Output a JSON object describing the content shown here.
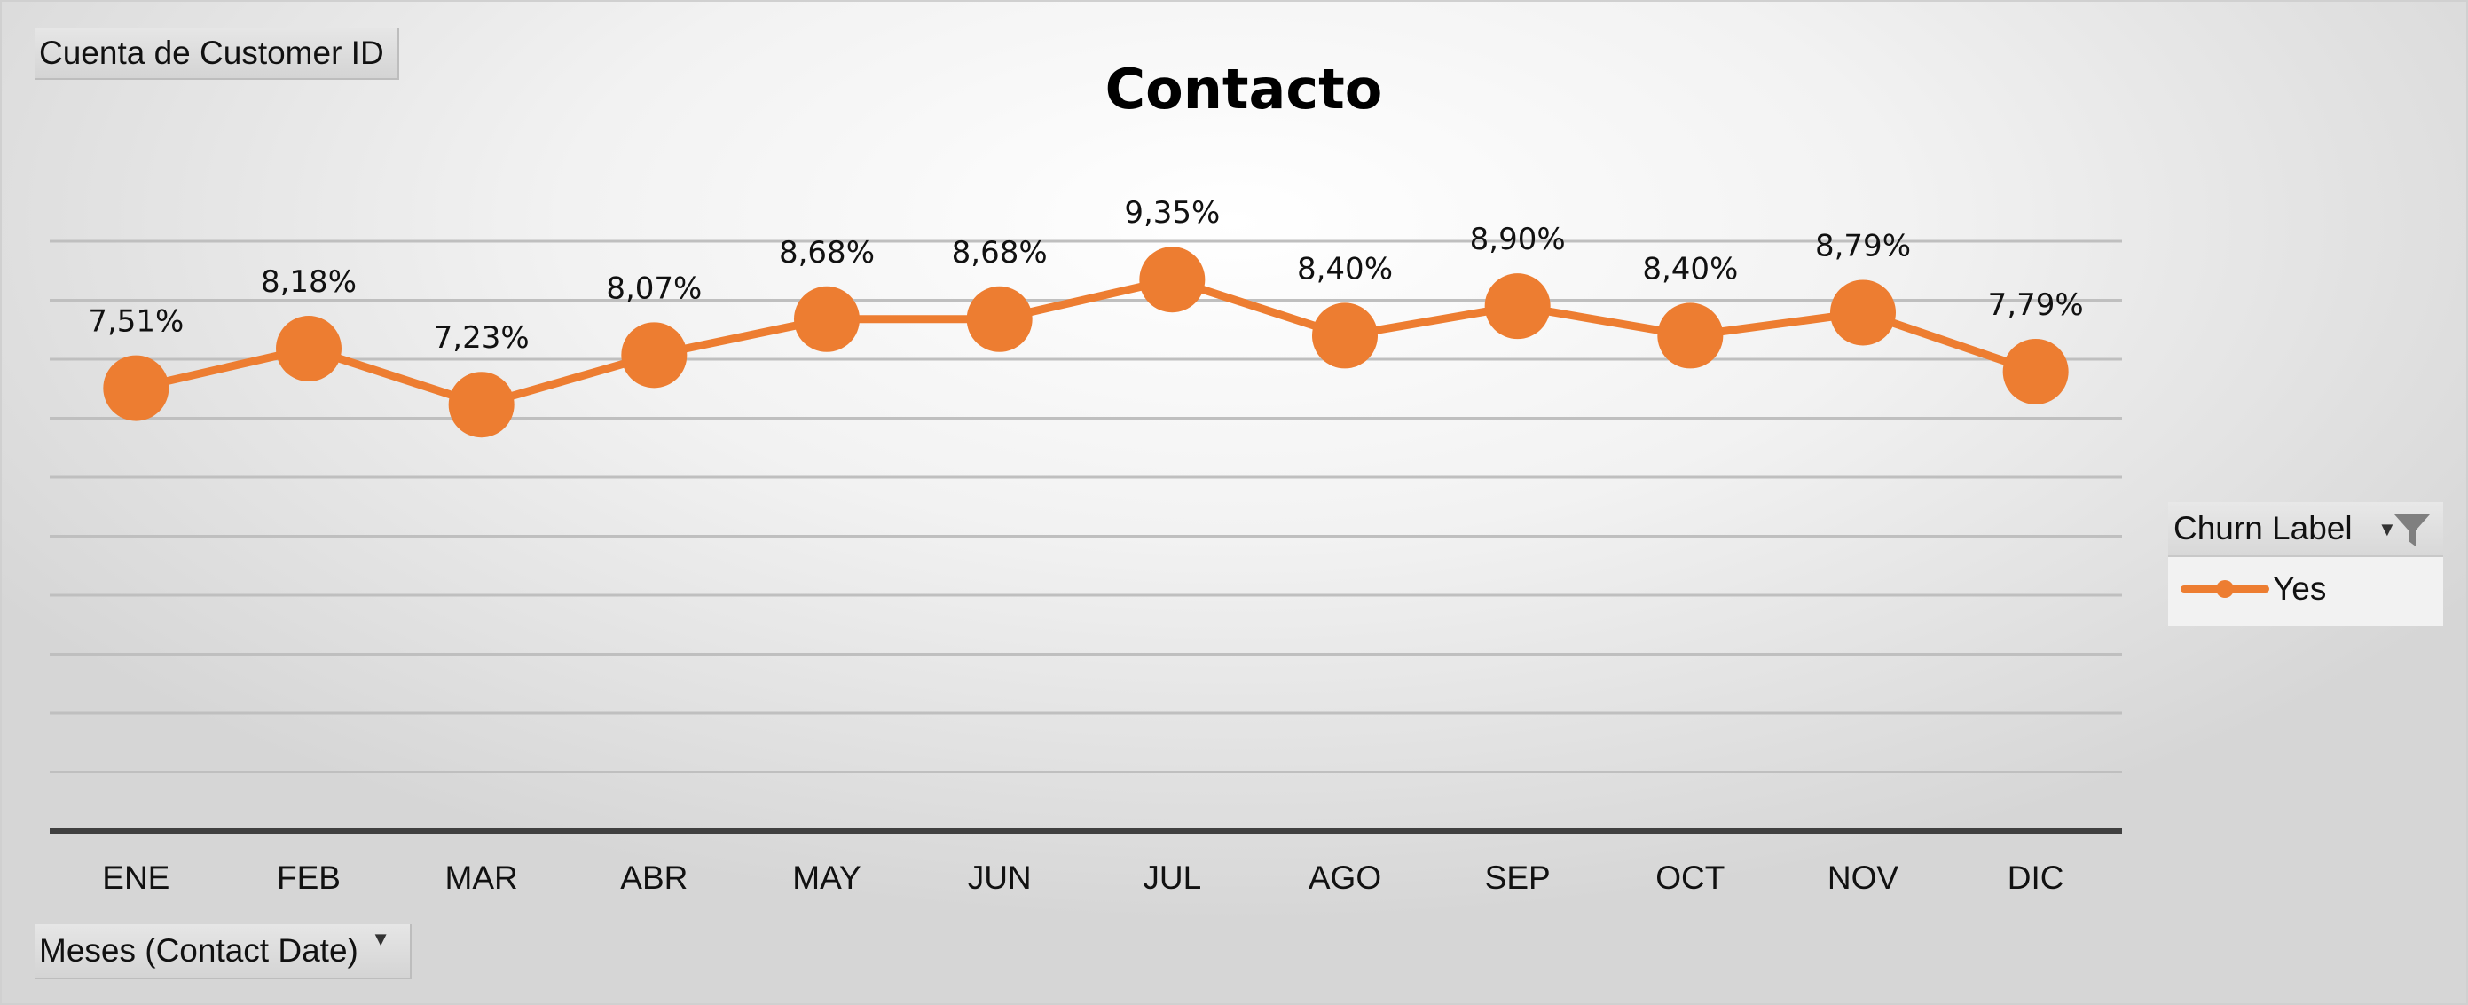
{
  "value_field_button": {
    "label": "Cuenta de Customer ID"
  },
  "axis_field_button": {
    "label": "Meses (Contact Date)"
  },
  "legend": {
    "field_label": "Churn Label",
    "entries": [
      {
        "label": "Yes"
      }
    ]
  },
  "colors": {
    "series": "#ED7D31",
    "gridline": "#BFBFBF",
    "axis_line": "#404040"
  },
  "icons": [
    "dropdown-arrow-icon",
    "filter-icon"
  ],
  "chart_data": {
    "type": "line",
    "title": "Contacto",
    "xlabel": "",
    "ylabel": "",
    "categories": [
      "ENE",
      "FEB",
      "MAR",
      "ABR",
      "MAY",
      "JUN",
      "JUL",
      "AGO",
      "SEP",
      "OCT",
      "NOV",
      "DIC"
    ],
    "series": [
      {
        "name": "Yes",
        "values": [
          7.51,
          8.18,
          7.23,
          8.07,
          8.68,
          8.68,
          9.35,
          8.4,
          8.9,
          8.4,
          8.79,
          7.79
        ],
        "labels": [
          "7,51%",
          "8,18%",
          "7,23%",
          "8,07%",
          "8,68%",
          "8,68%",
          "9,35%",
          "8,40%",
          "8,90%",
          "8,40%",
          "8,79%",
          "7,79%"
        ]
      }
    ],
    "ylim": [
      0,
      10
    ],
    "y_gridlines": 10,
    "y_axis_visible": false,
    "grid": true,
    "legend_position": "right"
  }
}
